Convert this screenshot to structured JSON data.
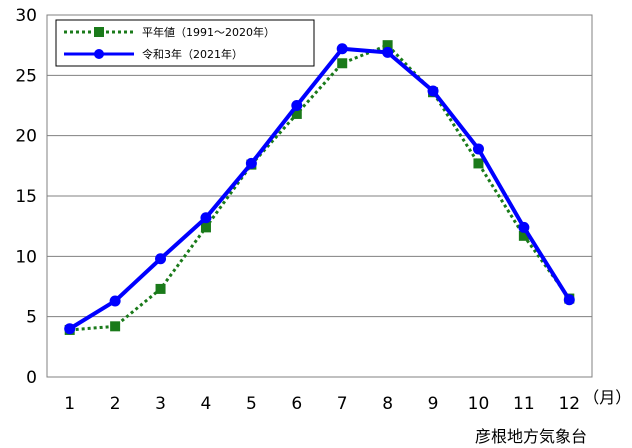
{
  "chart_data": {
    "type": "line",
    "x": [
      1,
      2,
      3,
      4,
      5,
      6,
      7,
      8,
      9,
      10,
      11,
      12
    ],
    "x_unit": "（月）",
    "ylim": [
      0,
      30
    ],
    "yticks": [
      0,
      5,
      10,
      15,
      20,
      25,
      30
    ],
    "grid": true,
    "legend_position": "top-left",
    "series": [
      {
        "name": "平年値（1991～2020年）",
        "values": [
          3.9,
          4.2,
          7.3,
          12.4,
          17.6,
          21.8,
          26.0,
          27.5,
          23.6,
          17.7,
          11.7,
          6.5
        ],
        "color": "#1a7a1a",
        "line_style": "dotted",
        "marker": "square"
      },
      {
        "name": "令和3年（2021年）",
        "values": [
          4.0,
          6.3,
          9.8,
          13.2,
          17.7,
          22.5,
          27.2,
          26.9,
          23.7,
          18.9,
          12.4,
          6.4
        ],
        "color": "#0000ff",
        "line_style": "solid",
        "marker": "circle"
      }
    ],
    "source": "彦根地方気象台"
  }
}
